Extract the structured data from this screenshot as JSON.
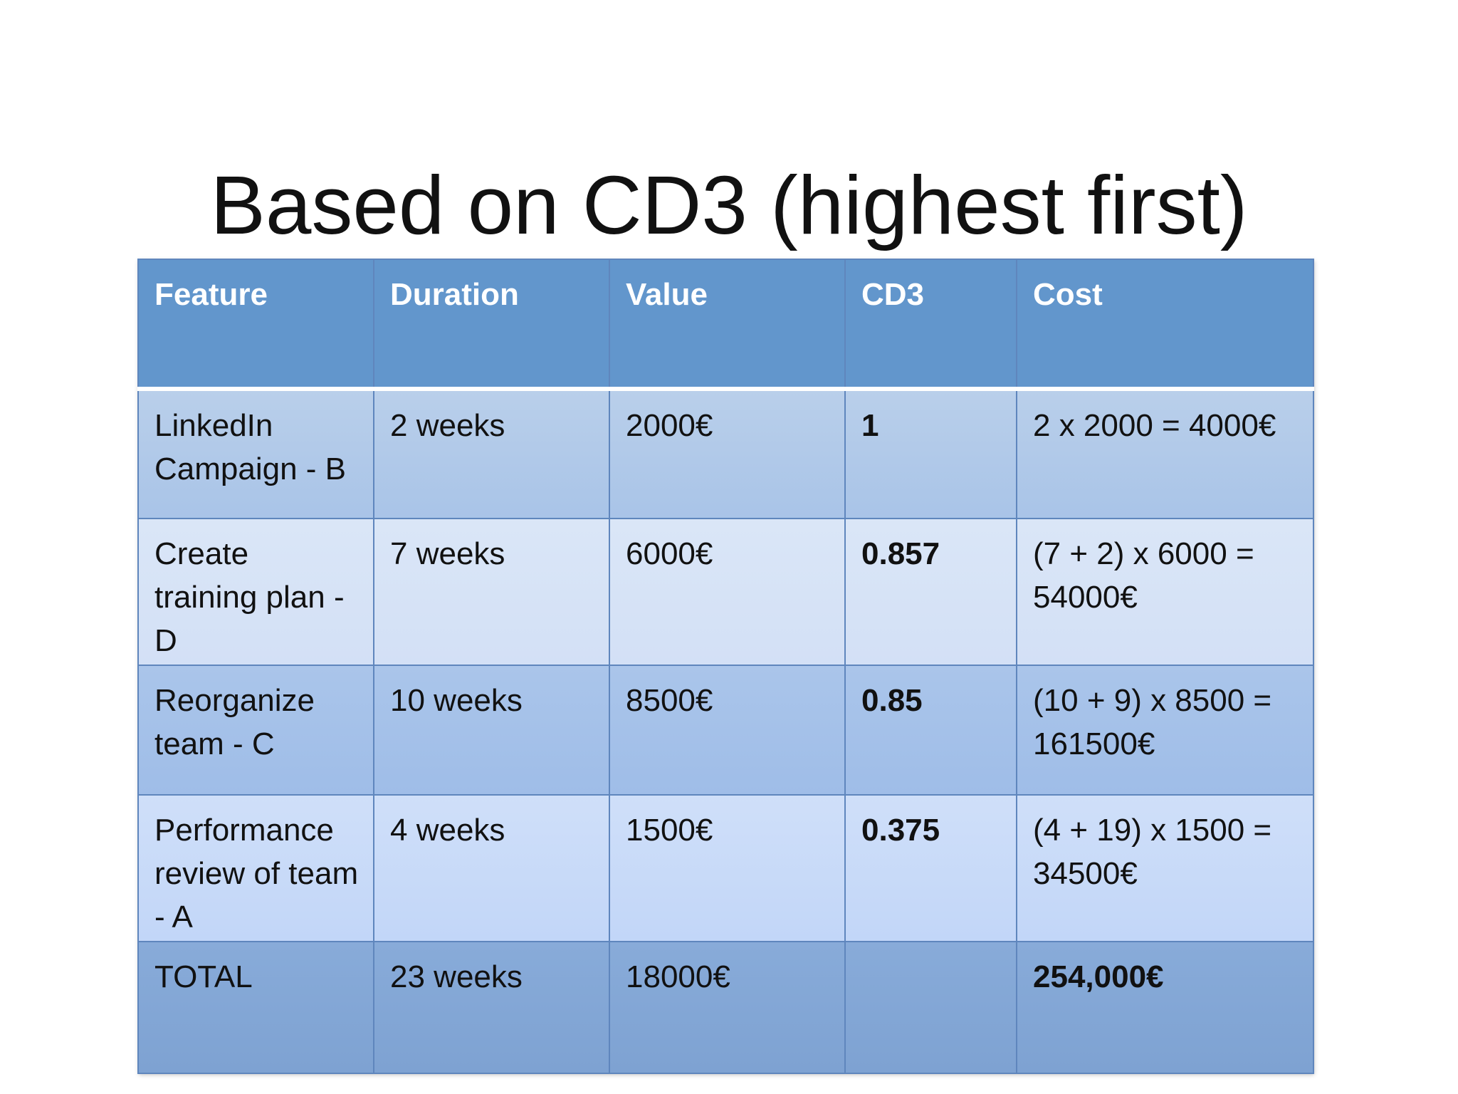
{
  "slide": {
    "title": "Based on CD3 (highest first)"
  },
  "table": {
    "headers": [
      "Feature",
      "Duration",
      "Value",
      "CD3",
      "Cost"
    ],
    "rows": [
      {
        "feature": "LinkedIn Campaign - B",
        "duration": "2 weeks",
        "value": "2000€",
        "cd3": "1",
        "cost": "2 x 2000 = 4000€"
      },
      {
        "feature": "Create training plan - D",
        "duration": "7 weeks",
        "value": "6000€",
        "cd3": "0.857",
        "cost": "(7 + 2) x 6000 = 54000€"
      },
      {
        "feature": "Reorganize team - C",
        "duration": "10 weeks",
        "value": "8500€",
        "cd3": "0.85",
        "cost": "(10 + 9) x 8500 = 161500€"
      },
      {
        "feature": "Performance review of team - A",
        "duration": "4 weeks",
        "value": "1500€",
        "cd3": "0.375",
        "cost": "(4 + 19) x 1500 = 34500€"
      }
    ],
    "total": {
      "label": "TOTAL",
      "duration": "23 weeks",
      "value": "18000€",
      "cd3": "",
      "cost": "254,000€"
    }
  },
  "colors": {
    "header_bg": "#6296cc",
    "row_dark": "#a9c4e8",
    "row_light": "#d3e0f6",
    "total_bg": "#7ea2d2",
    "border": "#5f86bd"
  }
}
